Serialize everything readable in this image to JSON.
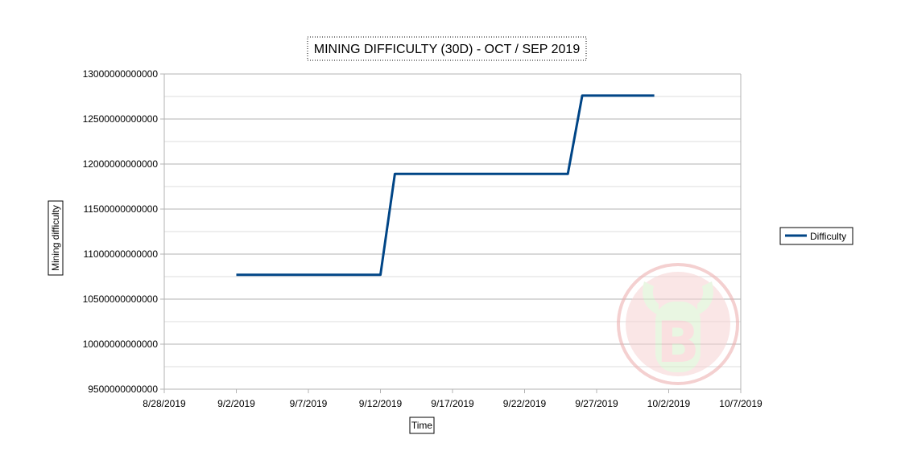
{
  "chart_data": {
    "type": "line",
    "title": "MINING DIFFICULTY (30D) - OCT / SEP 2019",
    "xlabel": "Time",
    "ylabel": "Mining difficulty",
    "x_ticks": [
      "8/28/2019",
      "9/2/2019",
      "9/7/2019",
      "9/12/2019",
      "9/17/2019",
      "9/22/2019",
      "9/27/2019",
      "10/2/2019",
      "10/7/2019"
    ],
    "y_ticks": [
      "9500000000000",
      "10000000000000",
      "10500000000000",
      "11000000000000",
      "11500000000000",
      "12000000000000",
      "12500000000000",
      "13000000000000"
    ],
    "xlim": [
      "2019-08-28",
      "2019-10-07"
    ],
    "ylim": [
      9500000000000,
      13000000000000
    ],
    "grid": true,
    "legend_position": "right",
    "series": [
      {
        "name": "Difficulty",
        "color": "#004586",
        "x": [
          "2019-09-02",
          "2019-09-12",
          "2019-09-13",
          "2019-09-25",
          "2019-09-26",
          "2019-10-01"
        ],
        "y": [
          10770000000000,
          10770000000000,
          11890000000000,
          11890000000000,
          12760000000000,
          12760000000000
        ]
      }
    ]
  },
  "watermark": {
    "icon": "bitcoin-bull-logo",
    "color": "#f2c2c2"
  }
}
